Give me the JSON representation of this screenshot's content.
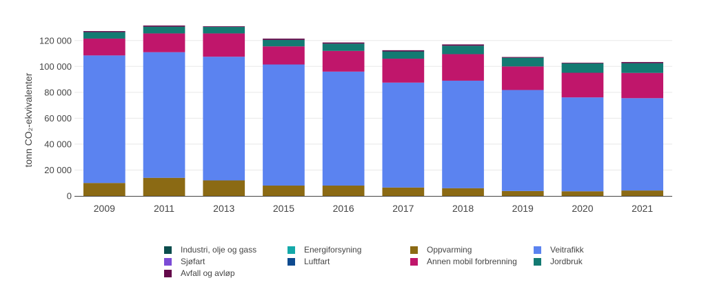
{
  "chart_data": {
    "type": "bar",
    "stacked": true,
    "ylabel": "tonn CO₂-ekvivalenter",
    "xlabel": "",
    "ylim": [
      0,
      130000
    ],
    "yticks": [
      0,
      20000,
      40000,
      60000,
      80000,
      100000,
      120000
    ],
    "ytick_labels": [
      "0",
      "20 000",
      "40 000",
      "60 000",
      "80 000",
      "100 000",
      "120 000"
    ],
    "categories": [
      "2009",
      "2011",
      "2013",
      "2015",
      "2016",
      "2017",
      "2018",
      "2019",
      "2020",
      "2021"
    ],
    "grid": true,
    "legend_position": "bottom",
    "series": [
      {
        "name": "Industri, olje og gass",
        "color": "#0b4d4d",
        "values": [
          0,
          0,
          0,
          0,
          0,
          0,
          0,
          0,
          0,
          0
        ]
      },
      {
        "name": "Energiforsyning",
        "color": "#14a9a9",
        "values": [
          0,
          0,
          0,
          0,
          0,
          0,
          0,
          0,
          0,
          0
        ]
      },
      {
        "name": "Oppvarming",
        "color": "#8b6a14",
        "values": [
          10000,
          14000,
          12000,
          8000,
          8000,
          6500,
          6000,
          3800,
          3600,
          4200
        ]
      },
      {
        "name": "Veitrafikk",
        "color": "#5b83f0",
        "values": [
          98500,
          97000,
          95500,
          93500,
          88000,
          81000,
          83000,
          78000,
          72500,
          71300
        ]
      },
      {
        "name": "Sjøfart",
        "color": "#7b4bd6",
        "values": [
          0,
          0,
          0,
          0,
          0,
          0,
          0,
          0,
          0,
          0
        ]
      },
      {
        "name": "Luftfart",
        "color": "#0e4a8f",
        "values": [
          0,
          0,
          0,
          0,
          0,
          0,
          0,
          0,
          0,
          0
        ]
      },
      {
        "name": "Annen mobil forbrenning",
        "color": "#c0166b",
        "values": [
          13000,
          14500,
          18000,
          14000,
          16000,
          18500,
          20500,
          18200,
          19000,
          19500
        ]
      },
      {
        "name": "Jordbruk",
        "color": "#137a72",
        "values": [
          5000,
          5200,
          5000,
          5000,
          5600,
          5600,
          6500,
          6700,
          7300,
          7500
        ]
      },
      {
        "name": "Avfall og avløp",
        "color": "#64094a",
        "values": [
          800,
          900,
          500,
          1000,
          900,
          900,
          1000,
          600,
          500,
          900
        ]
      }
    ]
  }
}
